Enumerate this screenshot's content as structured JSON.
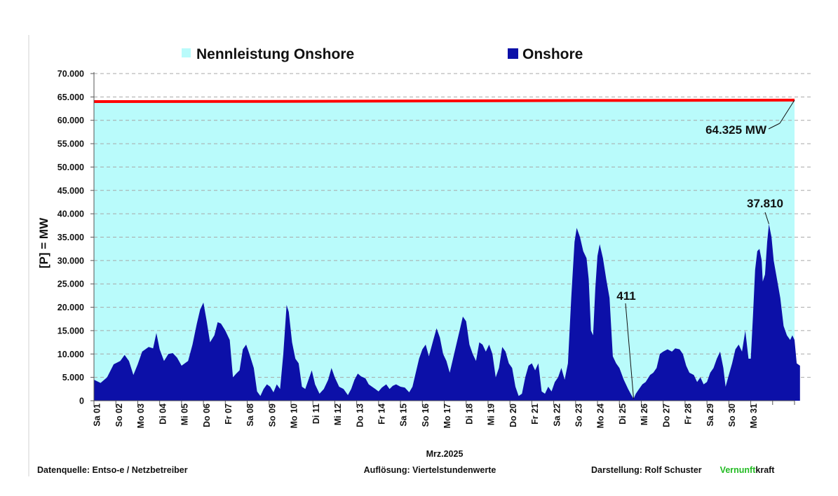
{
  "chart_data": {
    "type": "area",
    "x_label": "Mrz.2025",
    "y_label": "[P] = MW",
    "ylim": [
      0,
      70000
    ],
    "y_ticks": [
      "0",
      "5.000",
      "10.000",
      "15.000",
      "20.000",
      "25.000",
      "30.000",
      "35.000",
      "40.000",
      "45.000",
      "50.000",
      "55.000",
      "60.000",
      "65.000",
      "70.000"
    ],
    "day_labels": [
      "Sa 01",
      "So 02",
      "Mo 03",
      "Di 04",
      "Mi 05",
      "Do 06",
      "Fr 07",
      "Sa 08",
      "So 09",
      "Mo 10",
      "Di 11",
      "Mi 12",
      "Do 13",
      "Fr 14",
      "Sa 15",
      "So 16",
      "Mo 17",
      "Di 18",
      "Mi 19",
      "Do 20",
      "Fr 21",
      "Sa 22",
      "So 23",
      "Mo 24",
      "Di 25",
      "Mi 26",
      "Do 27",
      "Fr 28",
      "Sa 29",
      "So 30",
      "Mo 31"
    ],
    "grid": "horizontal dashed",
    "series": [
      {
        "name": "Nennleistung Onshore",
        "color": "#b9fbfb",
        "line_color": "#ff0000",
        "start_value": 64000,
        "end_value": 64325
      },
      {
        "name": "Onshore",
        "color": "#0c10a8",
        "points": [
          [
            0.0,
            4500
          ],
          [
            0.3,
            3800
          ],
          [
            0.6,
            5000
          ],
          [
            0.9,
            7800
          ],
          [
            1.2,
            8500
          ],
          [
            1.4,
            9800
          ],
          [
            1.6,
            8500
          ],
          [
            1.8,
            5500
          ],
          [
            2.0,
            7800
          ],
          [
            2.2,
            10500
          ],
          [
            2.5,
            11500
          ],
          [
            2.7,
            11200
          ],
          [
            2.85,
            14500
          ],
          [
            3.0,
            11000
          ],
          [
            3.2,
            8500
          ],
          [
            3.4,
            10000
          ],
          [
            3.6,
            10200
          ],
          [
            3.8,
            9200
          ],
          [
            4.0,
            7500
          ],
          [
            4.3,
            8500
          ],
          [
            4.5,
            12000
          ],
          [
            4.7,
            16500
          ],
          [
            4.85,
            19500
          ],
          [
            5.0,
            21000
          ],
          [
            5.15,
            17000
          ],
          [
            5.3,
            12500
          ],
          [
            5.5,
            14000
          ],
          [
            5.65,
            16800
          ],
          [
            5.8,
            16500
          ],
          [
            6.0,
            15000
          ],
          [
            6.2,
            13000
          ],
          [
            6.35,
            5000
          ],
          [
            6.5,
            5800
          ],
          [
            6.65,
            6500
          ],
          [
            6.8,
            11000
          ],
          [
            6.95,
            12000
          ],
          [
            7.1,
            10000
          ],
          [
            7.3,
            7000
          ],
          [
            7.45,
            2000
          ],
          [
            7.6,
            1000
          ],
          [
            7.75,
            2500
          ],
          [
            7.9,
            3500
          ],
          [
            8.05,
            3000
          ],
          [
            8.2,
            1800
          ],
          [
            8.35,
            3500
          ],
          [
            8.5,
            2500
          ],
          [
            8.65,
            10000
          ],
          [
            8.8,
            20500
          ],
          [
            8.9,
            19000
          ],
          [
            9.05,
            12500
          ],
          [
            9.2,
            9000
          ],
          [
            9.35,
            8000
          ],
          [
            9.5,
            3000
          ],
          [
            9.65,
            2500
          ],
          [
            9.8,
            4500
          ],
          [
            9.95,
            6500
          ],
          [
            10.1,
            3500
          ],
          [
            10.3,
            1500
          ],
          [
            10.5,
            2500
          ],
          [
            10.7,
            4500
          ],
          [
            10.85,
            7000
          ],
          [
            11.0,
            5000
          ],
          [
            11.2,
            3000
          ],
          [
            11.4,
            2500
          ],
          [
            11.6,
            1200
          ],
          [
            11.75,
            2500
          ],
          [
            11.9,
            4500
          ],
          [
            12.05,
            5800
          ],
          [
            12.2,
            5200
          ],
          [
            12.4,
            4800
          ],
          [
            12.55,
            3500
          ],
          [
            12.7,
            3000
          ],
          [
            12.85,
            2500
          ],
          [
            13.0,
            2000
          ],
          [
            13.15,
            2800
          ],
          [
            13.35,
            3500
          ],
          [
            13.5,
            2500
          ],
          [
            13.65,
            3200
          ],
          [
            13.8,
            3500
          ],
          [
            14.0,
            3000
          ],
          [
            14.2,
            2800
          ],
          [
            14.4,
            1800
          ],
          [
            14.55,
            3000
          ],
          [
            14.7,
            6000
          ],
          [
            14.85,
            9000
          ],
          [
            15.0,
            11000
          ],
          [
            15.15,
            12000
          ],
          [
            15.3,
            9500
          ],
          [
            15.5,
            13000
          ],
          [
            15.65,
            15500
          ],
          [
            15.8,
            13500
          ],
          [
            15.95,
            10000
          ],
          [
            16.1,
            8500
          ],
          [
            16.25,
            6000
          ],
          [
            16.4,
            9000
          ],
          [
            16.55,
            12000
          ],
          [
            16.7,
            15000
          ],
          [
            16.85,
            18000
          ],
          [
            17.0,
            17000
          ],
          [
            17.15,
            12000
          ],
          [
            17.3,
            10000
          ],
          [
            17.45,
            8500
          ],
          [
            17.6,
            12500
          ],
          [
            17.75,
            12000
          ],
          [
            17.9,
            10500
          ],
          [
            18.05,
            12000
          ],
          [
            18.2,
            10000
          ],
          [
            18.35,
            5000
          ],
          [
            18.5,
            7000
          ],
          [
            18.65,
            11500
          ],
          [
            18.8,
            10500
          ],
          [
            18.95,
            8000
          ],
          [
            19.1,
            7000
          ],
          [
            19.25,
            3000
          ],
          [
            19.4,
            1000
          ],
          [
            19.55,
            1500
          ],
          [
            19.7,
            5000
          ],
          [
            19.85,
            7500
          ],
          [
            20.0,
            8000
          ],
          [
            20.15,
            6500
          ],
          [
            20.3,
            8000
          ],
          [
            20.45,
            2000
          ],
          [
            20.6,
            1500
          ],
          [
            20.75,
            3000
          ],
          [
            20.9,
            2000
          ],
          [
            21.05,
            4000
          ],
          [
            21.2,
            5000
          ],
          [
            21.35,
            7000
          ],
          [
            21.5,
            4500
          ],
          [
            21.65,
            8000
          ],
          [
            21.8,
            22000
          ],
          [
            21.95,
            34000
          ],
          [
            22.05,
            37000
          ],
          [
            22.2,
            35000
          ],
          [
            22.35,
            32000
          ],
          [
            22.5,
            30500
          ],
          [
            22.6,
            26000
          ],
          [
            22.7,
            15000
          ],
          [
            22.8,
            14000
          ],
          [
            22.9,
            24000
          ],
          [
            23.0,
            31000
          ],
          [
            23.1,
            33500
          ],
          [
            23.25,
            30500
          ],
          [
            23.4,
            26000
          ],
          [
            23.55,
            22000
          ],
          [
            23.7,
            9500
          ],
          [
            23.85,
            8000
          ],
          [
            24.0,
            7000
          ],
          [
            24.2,
            4500
          ],
          [
            24.4,
            2500
          ],
          [
            24.55,
            1200
          ],
          [
            24.65,
            411
          ],
          [
            24.75,
            1500
          ],
          [
            24.9,
            2500
          ],
          [
            25.05,
            3500
          ],
          [
            25.2,
            4000
          ],
          [
            25.4,
            5500
          ],
          [
            25.55,
            6000
          ],
          [
            25.7,
            7000
          ],
          [
            25.85,
            10000
          ],
          [
            26.0,
            10500
          ],
          [
            26.2,
            11000
          ],
          [
            26.4,
            10500
          ],
          [
            26.55,
            11200
          ],
          [
            26.75,
            11000
          ],
          [
            26.9,
            10000
          ],
          [
            27.05,
            7500
          ],
          [
            27.2,
            6000
          ],
          [
            27.4,
            5500
          ],
          [
            27.55,
            4000
          ],
          [
            27.7,
            5000
          ],
          [
            27.85,
            3500
          ],
          [
            28.0,
            4000
          ],
          [
            28.15,
            6000
          ],
          [
            28.3,
            7000
          ],
          [
            28.45,
            9000
          ],
          [
            28.6,
            10500
          ],
          [
            28.75,
            7000
          ],
          [
            28.85,
            3000
          ],
          [
            29.0,
            5500
          ],
          [
            29.15,
            8000
          ],
          [
            29.3,
            11000
          ],
          [
            29.45,
            12000
          ],
          [
            29.6,
            10500
          ],
          [
            29.75,
            15000
          ],
          [
            29.9,
            9000
          ],
          [
            30.0,
            9000
          ],
          [
            30.1,
            18000
          ],
          [
            30.2,
            28000
          ],
          [
            30.3,
            32000
          ],
          [
            30.4,
            32500
          ],
          [
            30.5,
            30000
          ],
          [
            30.55,
            25500
          ],
          [
            30.65,
            27000
          ],
          [
            30.75,
            34000
          ],
          [
            30.83,
            37810
          ],
          [
            30.95,
            35000
          ],
          [
            31.05,
            30000
          ],
          [
            31.2,
            26000
          ],
          [
            31.35,
            22000
          ],
          [
            31.5,
            16000
          ],
          [
            31.65,
            14000
          ],
          [
            31.8,
            13000
          ],
          [
            31.9,
            14000
          ],
          [
            32.0,
            13000
          ],
          [
            32.1,
            8000
          ],
          [
            32.25,
            7500
          ]
        ]
      }
    ],
    "annotations": [
      {
        "label": "64.325 MW",
        "value": 64325
      },
      {
        "label": "411",
        "value": 411
      },
      {
        "label": "37.810",
        "value": 37810
      }
    ]
  },
  "footer": {
    "source": "Datenquelle:  Entso-e  / Netzbetreiber",
    "resolution": "Auflösung:  Viertelstundenwerte",
    "author": "Darstellung:  Rolf Schuster",
    "brand_green": "Vernunft",
    "brand_black": "kraft"
  }
}
